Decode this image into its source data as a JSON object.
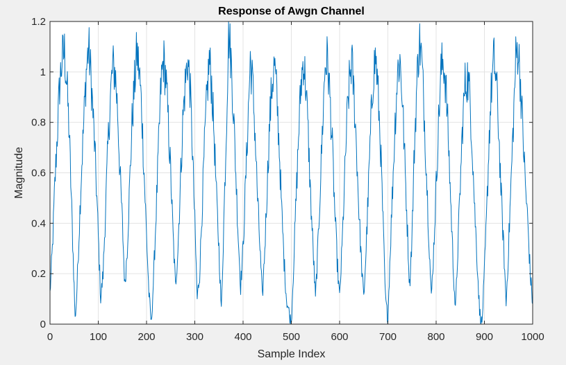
{
  "chart_data": {
    "type": "line",
    "title": "Response of Awgn Channel",
    "xlabel": "Sample Index",
    "ylabel": "Magnitude",
    "xlim": [
      0,
      1000
    ],
    "ylim": [
      0,
      1.2
    ],
    "xticks": [
      0,
      100,
      200,
      300,
      400,
      500,
      600,
      700,
      800,
      900,
      1000
    ],
    "yticks": [
      0,
      0.2,
      0.4,
      0.6,
      0.8,
      1,
      1.2
    ],
    "xtick_labels": [
      "0",
      "100",
      "200",
      "300",
      "400",
      "500",
      "600",
      "700",
      "800",
      "900",
      "1000"
    ],
    "ytick_labels": [
      "0",
      "0.2",
      "0.4",
      "0.6",
      "0.8",
      "1",
      "1.2"
    ],
    "grid": true,
    "line_color": "#0072bd",
    "series": [
      {
        "envelope_period_samples": 70,
        "samples": 1000,
        "points": [
          [
            0,
            0.12
          ],
          [
            5,
            0.3
          ],
          [
            10,
            0.55
          ],
          [
            15,
            0.75
          ],
          [
            20,
            0.95
          ],
          [
            25,
            1.05
          ],
          [
            30,
            1.08
          ],
          [
            35,
            0.95
          ],
          [
            40,
            0.75
          ],
          [
            45,
            0.45
          ],
          [
            50,
            0.15
          ],
          [
            52,
            0.02
          ],
          [
            55,
            0.1
          ],
          [
            60,
            0.35
          ],
          [
            65,
            0.6
          ],
          [
            70,
            0.8
          ],
          [
            75,
            1.0
          ],
          [
            80,
            1.1
          ],
          [
            85,
            0.98
          ],
          [
            90,
            0.8
          ],
          [
            95,
            0.6
          ],
          [
            100,
            0.35
          ],
          [
            105,
            0.1
          ],
          [
            110,
            0.2
          ],
          [
            115,
            0.45
          ],
          [
            120,
            0.7
          ],
          [
            125,
            0.9
          ],
          [
            130,
            1.02
          ],
          [
            135,
            1.0
          ],
          [
            140,
            0.85
          ],
          [
            145,
            0.6
          ],
          [
            150,
            0.4
          ],
          [
            155,
            0.15
          ],
          [
            160,
            0.3
          ],
          [
            165,
            0.55
          ],
          [
            170,
            0.8
          ],
          [
            175,
            0.95
          ],
          [
            180,
            1.08
          ],
          [
            185,
            1.0
          ],
          [
            190,
            0.85
          ],
          [
            195,
            0.6
          ],
          [
            200,
            0.35
          ],
          [
            205,
            0.12
          ],
          [
            210,
            0.0
          ],
          [
            215,
            0.2
          ],
          [
            220,
            0.45
          ],
          [
            225,
            0.7
          ],
          [
            230,
            0.95
          ],
          [
            235,
            1.05
          ],
          [
            240,
            0.98
          ],
          [
            245,
            0.8
          ],
          [
            250,
            0.6
          ],
          [
            255,
            0.35
          ],
          [
            260,
            0.15
          ],
          [
            265,
            0.3
          ],
          [
            270,
            0.55
          ],
          [
            275,
            0.8
          ],
          [
            280,
            0.95
          ],
          [
            285,
            1.05
          ],
          [
            290,
            0.95
          ],
          [
            295,
            0.7
          ],
          [
            300,
            0.4
          ],
          [
            305,
            0.1
          ],
          [
            310,
            0.2
          ],
          [
            315,
            0.45
          ],
          [
            320,
            0.7
          ],
          [
            325,
            0.9
          ],
          [
            330,
            1.05
          ],
          [
            335,
            0.95
          ],
          [
            340,
            0.75
          ],
          [
            345,
            0.5
          ],
          [
            350,
            0.3
          ],
          [
            355,
            0.05
          ],
          [
            360,
            0.4
          ],
          [
            365,
            0.75
          ],
          [
            370,
            1.17
          ],
          [
            375,
            1.05
          ],
          [
            380,
            0.85
          ],
          [
            385,
            0.6
          ],
          [
            390,
            0.35
          ],
          [
            395,
            0.15
          ],
          [
            400,
            0.3
          ],
          [
            405,
            0.55
          ],
          [
            410,
            0.8
          ],
          [
            415,
            1.05
          ],
          [
            420,
            0.95
          ],
          [
            425,
            0.75
          ],
          [
            430,
            0.5
          ],
          [
            435,
            0.3
          ],
          [
            440,
            0.1
          ],
          [
            445,
            0.3
          ],
          [
            450,
            0.55
          ],
          [
            455,
            0.8
          ],
          [
            460,
            0.95
          ],
          [
            465,
            1.03
          ],
          [
            470,
            0.9
          ],
          [
            475,
            0.7
          ],
          [
            480,
            0.45
          ],
          [
            485,
            0.25
          ],
          [
            490,
            0.1
          ],
          [
            495,
            0.05
          ],
          [
            500,
            0.0
          ],
          [
            505,
            0.25
          ],
          [
            510,
            0.5
          ],
          [
            515,
            0.75
          ],
          [
            520,
            0.95
          ],
          [
            525,
            1.05
          ],
          [
            530,
            0.95
          ],
          [
            535,
            0.75
          ],
          [
            540,
            0.5
          ],
          [
            545,
            0.3
          ],
          [
            550,
            0.1
          ],
          [
            555,
            0.3
          ],
          [
            560,
            0.55
          ],
          [
            565,
            0.8
          ],
          [
            570,
            1.03
          ],
          [
            575,
            1.05
          ],
          [
            580,
            0.9
          ],
          [
            585,
            0.7
          ],
          [
            590,
            0.45
          ],
          [
            595,
            0.25
          ],
          [
            600,
            0.1
          ],
          [
            605,
            0.3
          ],
          [
            610,
            0.55
          ],
          [
            615,
            0.8
          ],
          [
            620,
            0.95
          ],
          [
            625,
            1.05
          ],
          [
            630,
            0.9
          ],
          [
            635,
            0.7
          ],
          [
            640,
            0.45
          ],
          [
            645,
            0.25
          ],
          [
            650,
            0.1
          ],
          [
            655,
            0.3
          ],
          [
            660,
            0.55
          ],
          [
            665,
            0.8
          ],
          [
            670,
            1.0
          ],
          [
            675,
            1.06
          ],
          [
            680,
            0.9
          ],
          [
            685,
            0.7
          ],
          [
            690,
            0.4
          ],
          [
            695,
            0.1
          ],
          [
            700,
            0.02
          ],
          [
            705,
            0.3
          ],
          [
            710,
            0.55
          ],
          [
            715,
            0.8
          ],
          [
            720,
            1.0
          ],
          [
            725,
            1.05
          ],
          [
            730,
            0.9
          ],
          [
            735,
            0.65
          ],
          [
            740,
            0.4
          ],
          [
            745,
            0.15
          ],
          [
            750,
            0.35
          ],
          [
            755,
            0.7
          ],
          [
            760,
            0.95
          ],
          [
            765,
            1.13
          ],
          [
            770,
            1.05
          ],
          [
            775,
            0.85
          ],
          [
            780,
            0.6
          ],
          [
            785,
            0.35
          ],
          [
            790,
            0.1
          ],
          [
            795,
            0.3
          ],
          [
            800,
            0.55
          ],
          [
            805,
            0.8
          ],
          [
            810,
            1.0
          ],
          [
            815,
            1.05
          ],
          [
            820,
            0.95
          ],
          [
            825,
            0.75
          ],
          [
            830,
            0.5
          ],
          [
            835,
            0.25
          ],
          [
            840,
            0.05
          ],
          [
            845,
            0.3
          ],
          [
            850,
            0.55
          ],
          [
            855,
            0.8
          ],
          [
            860,
            0.95
          ],
          [
            865,
            0.98
          ],
          [
            870,
            0.9
          ],
          [
            875,
            0.7
          ],
          [
            880,
            0.45
          ],
          [
            885,
            0.25
          ],
          [
            890,
            0.05
          ],
          [
            895,
            0.0
          ],
          [
            900,
            0.2
          ],
          [
            905,
            0.45
          ],
          [
            910,
            0.75
          ],
          [
            915,
            0.95
          ],
          [
            920,
            1.05
          ],
          [
            925,
            0.95
          ],
          [
            930,
            0.75
          ],
          [
            935,
            0.5
          ],
          [
            940,
            0.3
          ],
          [
            945,
            0.08
          ],
          [
            950,
            0.3
          ],
          [
            955,
            0.55
          ],
          [
            960,
            0.8
          ],
          [
            965,
            1.05
          ],
          [
            970,
            1.1
          ],
          [
            975,
            0.95
          ],
          [
            980,
            0.75
          ],
          [
            985,
            0.55
          ],
          [
            990,
            0.4
          ],
          [
            995,
            0.2
          ],
          [
            1000,
            0.08
          ]
        ]
      }
    ]
  }
}
